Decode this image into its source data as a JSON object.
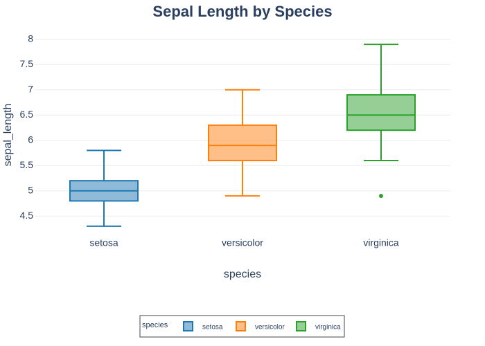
{
  "chart_data": {
    "type": "box",
    "title": "Sepal Length by Species",
    "x_label": "species",
    "y_label": "sepal_length",
    "categories": [
      "setosa",
      "versicolor",
      "virginica"
    ],
    "legend_title": "species",
    "legend_position": "bottom",
    "grid": true,
    "ylim": [
      4.12,
      8.23
    ],
    "yticks": [
      4.5,
      5,
      5.5,
      6,
      6.5,
      7,
      7.5,
      8
    ],
    "series": [
      {
        "name": "setosa",
        "color": "#1f77b4",
        "min": 4.3,
        "q1": 4.8,
        "median": 5.0,
        "q3": 5.2,
        "max": 5.8,
        "outliers": []
      },
      {
        "name": "versicolor",
        "color": "#ff7f0e",
        "min": 4.9,
        "q1": 5.6,
        "median": 5.9,
        "q3": 6.3,
        "max": 7.0,
        "outliers": []
      },
      {
        "name": "virginica",
        "color": "#2ca02c",
        "min": 5.6,
        "q1": 6.2,
        "median": 6.5,
        "q3": 6.9,
        "max": 7.9,
        "outliers": [
          4.9
        ]
      }
    ]
  }
}
